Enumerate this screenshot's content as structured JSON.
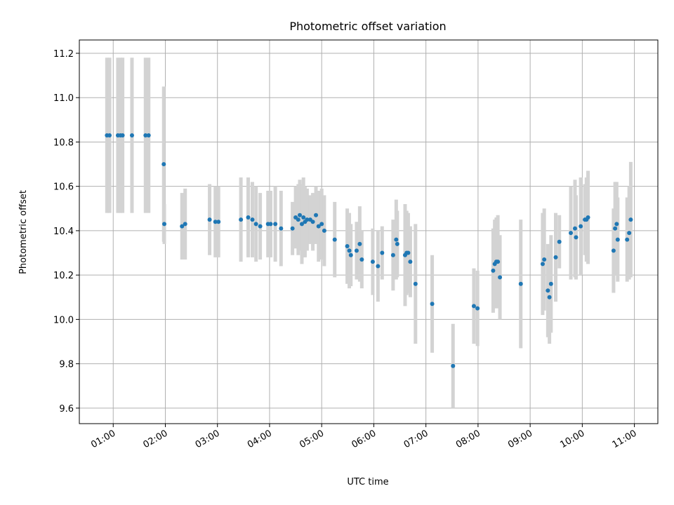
{
  "chart_data": {
    "type": "scatter",
    "title": "Photometric offset variation",
    "xlabel": "UTC time",
    "ylabel": "Photometric offset",
    "x_ticks": [
      "01:00",
      "02:00",
      "03:00",
      "04:00",
      "05:00",
      "06:00",
      "07:00",
      "08:00",
      "09:00",
      "10:00",
      "11:00"
    ],
    "x_tick_hours": [
      1,
      2,
      3,
      4,
      5,
      6,
      7,
      8,
      9,
      10,
      11
    ],
    "y_ticks": [
      "9.6",
      "9.8",
      "10.0",
      "10.2",
      "10.4",
      "10.6",
      "10.8",
      "11.0",
      "11.2"
    ],
    "y_tick_values": [
      9.6,
      9.8,
      10.0,
      10.2,
      10.4,
      10.6,
      10.8,
      11.0,
      11.2
    ],
    "xlim_hours": [
      0.35,
      11.45
    ],
    "ylim": [
      9.53,
      11.26
    ],
    "grid": true,
    "point_color": "#1f77b4",
    "errorbar_color": "#d3d3d3",
    "series": [
      {
        "x_hours": [
          0.88,
          0.93,
          1.09,
          1.14,
          1.18,
          1.36,
          1.62,
          1.68,
          1.97,
          1.98,
          2.32,
          2.38,
          2.85,
          2.96,
          3.02,
          3.45,
          3.59,
          3.67,
          3.74,
          3.82,
          3.97,
          4.02,
          4.11,
          4.22,
          4.44,
          4.5,
          4.55,
          4.58,
          4.62,
          4.65,
          4.68,
          4.72,
          4.78,
          4.83,
          4.89,
          4.94,
          5.0,
          5.05,
          5.25,
          5.49,
          5.53,
          5.56,
          5.67,
          5.73,
          5.77,
          5.98,
          6.08,
          6.16,
          6.37,
          6.43,
          6.45,
          6.6,
          6.63,
          6.66,
          6.7,
          6.8,
          7.12,
          7.52,
          7.92,
          7.99,
          8.29,
          8.32,
          8.35,
          8.38,
          8.42,
          8.82,
          9.24,
          9.27,
          9.34,
          9.37,
          9.4,
          9.49,
          9.56,
          9.78,
          9.86,
          9.88,
          9.97,
          10.05,
          10.08,
          10.11,
          10.6,
          10.63,
          10.66,
          10.68,
          10.86,
          10.9,
          10.93
        ],
        "y": [
          10.83,
          10.83,
          10.83,
          10.83,
          10.83,
          10.83,
          10.83,
          10.83,
          10.7,
          10.43,
          10.42,
          10.43,
          10.45,
          10.44,
          10.44,
          10.45,
          10.46,
          10.45,
          10.43,
          10.42,
          10.43,
          10.43,
          10.43,
          10.41,
          10.41,
          10.46,
          10.45,
          10.47,
          10.43,
          10.46,
          10.44,
          10.45,
          10.45,
          10.44,
          10.47,
          10.42,
          10.43,
          10.4,
          10.36,
          10.33,
          10.31,
          10.29,
          10.31,
          10.34,
          10.27,
          10.26,
          10.24,
          10.3,
          10.29,
          10.36,
          10.34,
          10.29,
          10.3,
          10.3,
          10.26,
          10.16,
          10.07,
          9.79,
          10.06,
          10.05,
          10.22,
          10.25,
          10.26,
          10.26,
          10.19,
          10.16,
          10.25,
          10.27,
          10.13,
          10.1,
          10.16,
          10.28,
          10.35,
          10.39,
          10.41,
          10.37,
          10.42,
          10.45,
          10.45,
          10.46,
          10.31,
          10.41,
          10.43,
          10.36,
          10.36,
          10.39,
          10.45
        ],
        "err": [
          0.35,
          0.35,
          0.35,
          0.35,
          0.35,
          0.35,
          0.35,
          0.35,
          0.35,
          0.09,
          0.15,
          0.16,
          0.16,
          0.16,
          0.16,
          0.19,
          0.18,
          0.17,
          0.17,
          0.15,
          0.15,
          0.15,
          0.17,
          0.17,
          0.12,
          0.14,
          0.16,
          0.16,
          0.18,
          0.18,
          0.16,
          0.14,
          0.11,
          0.13,
          0.13,
          0.16,
          0.16,
          0.16,
          0.17,
          0.17,
          0.17,
          0.14,
          0.13,
          0.17,
          0.13,
          0.15,
          0.16,
          0.12,
          0.16,
          0.18,
          0.15,
          0.23,
          0.19,
          0.18,
          0.16,
          0.27,
          0.22,
          0.19,
          0.17,
          0.17,
          0.19,
          0.2,
          0.2,
          0.21,
          0.19,
          0.29,
          0.23,
          0.23,
          0.21,
          0.21,
          0.22,
          0.2,
          0.12,
          0.21,
          0.22,
          0.19,
          0.22,
          0.16,
          0.19,
          0.21,
          0.19,
          0.21,
          0.19,
          0.19,
          0.19,
          0.21,
          0.26
        ]
      }
    ]
  }
}
